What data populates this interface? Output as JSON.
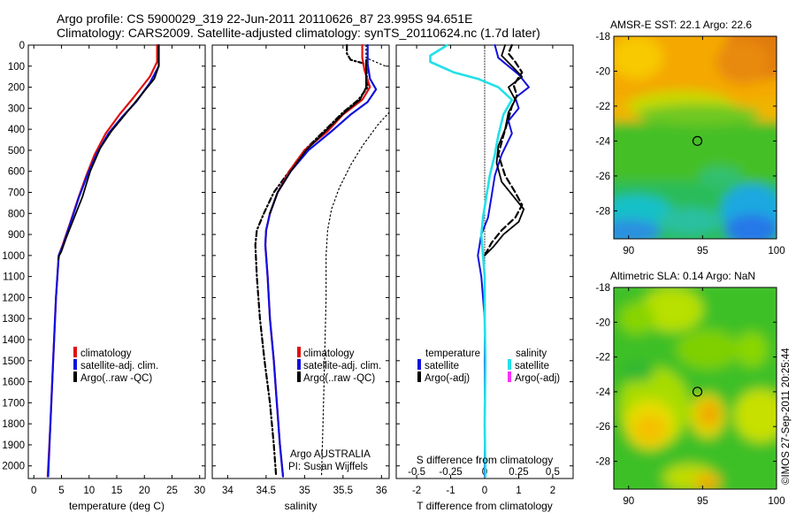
{
  "title_line1": "Argo profile: CS 5900029_319 22-Jun-2011 20110626_87 23.995S 94.651E",
  "title_line2": "Climatology: CARS2009. Satellite-adjusted climatology: synTS_20110624.nc (1.7d later)",
  "side_stamp": "©IMOS 27-Sep-2011 20:25:44",
  "colors": {
    "climatology": "#e01010",
    "satellite": "#1010e0",
    "argo": "#000000",
    "sat_s": "#22e0e8",
    "argo_adj_s": "#ff30ff"
  },
  "chart_data": [
    {
      "type": "line",
      "id": "temperature",
      "xlabel": "temperature (deg C)",
      "xlim": [
        -1,
        31
      ],
      "ylim": [
        2060,
        0
      ],
      "xticks": [
        0,
        5,
        10,
        15,
        20,
        25,
        30
      ],
      "yticks": [
        0,
        100,
        200,
        300,
        400,
        500,
        600,
        700,
        800,
        900,
        1000,
        1100,
        1200,
        1300,
        1400,
        1500,
        1600,
        1700,
        1800,
        1900,
        2000
      ],
      "legend": [
        {
          "label": "climatology",
          "color": "#e01010"
        },
        {
          "label": "satellite-adj. clim.",
          "color": "#1010e0"
        },
        {
          "label": "Argo(..raw -QC)",
          "color": "#000000"
        }
      ],
      "series": [
        {
          "key": "clim",
          "color": "#e01010",
          "width": 2.2,
          "dash": "",
          "points": [
            [
              22.3,
              0
            ],
            [
              22.3,
              80
            ],
            [
              21,
              150
            ],
            [
              18,
              250
            ],
            [
              15.5,
              330
            ],
            [
              13,
              420
            ],
            [
              11,
              520
            ],
            [
              9.5,
              620
            ],
            [
              8,
              730
            ],
            [
              6.5,
              850
            ],
            [
              5.2,
              950
            ],
            [
              4.5,
              1000
            ],
            [
              4,
              1200
            ],
            [
              3.5,
              1500
            ],
            [
              3,
              1800
            ],
            [
              2.5,
              2050
            ]
          ]
        },
        {
          "key": "sat",
          "color": "#1010e0",
          "width": 2.2,
          "dash": "",
          "points": [
            [
              22.6,
              0
            ],
            [
              22.6,
              100
            ],
            [
              21,
              180
            ],
            [
              18.5,
              270
            ],
            [
              16,
              340
            ],
            [
              13.5,
              420
            ],
            [
              11.5,
              510
            ],
            [
              9.8,
              610
            ],
            [
              8.2,
              720
            ],
            [
              6.7,
              840
            ],
            [
              5.3,
              950
            ],
            [
              4.5,
              1000
            ],
            [
              4,
              1200
            ],
            [
              3.5,
              1500
            ],
            [
              3,
              1800
            ],
            [
              2.6,
              2050
            ]
          ]
        },
        {
          "key": "argo",
          "color": "#000000",
          "width": 1.8,
          "dash": "",
          "points": [
            [
              22.6,
              0
            ],
            [
              22.6,
              100
            ],
            [
              21.8,
              160
            ],
            [
              19,
              250
            ],
            [
              16.5,
              330
            ],
            [
              14,
              410
            ],
            [
              12,
              490
            ],
            [
              10.2,
              600
            ],
            [
              8.8,
              720
            ],
            [
              7.3,
              820
            ],
            [
              5.8,
              920
            ],
            [
              5,
              980
            ],
            [
              4.6,
              1000
            ],
            [
              4.4,
              1020
            ]
          ]
        }
      ]
    },
    {
      "type": "line",
      "id": "salinity",
      "xlabel": "salinity",
      "xlim": [
        33.8,
        36.1
      ],
      "ylim": [
        2060,
        0
      ],
      "xticks": [
        34,
        34.5,
        35,
        35.5,
        36
      ],
      "legend": [
        {
          "label": "climatology",
          "color": "#e01010"
        },
        {
          "label": "satellite-adj. clim.",
          "color": "#1010e0"
        },
        {
          "label": "Argo(..raw -QC)",
          "color": "#000000"
        }
      ],
      "notes": [
        "Argo AUSTRALIA",
        "PI: Susan Wijffels"
      ],
      "series": [
        {
          "key": "clim_dot1",
          "color": "#000000",
          "width": 1.2,
          "dash": "1.5,3",
          "points": [
            [
              35.8,
              0
            ],
            [
              35.8,
              60
            ],
            [
              36.05,
              100
            ]
          ]
        },
        {
          "key": "clim_dot2",
          "color": "#000000",
          "width": 1.2,
          "dash": "1.5,3",
          "points": [
            [
              36.1,
              320
            ],
            [
              35.95,
              380
            ],
            [
              35.75,
              480
            ],
            [
              35.6,
              570
            ],
            [
              35.45,
              680
            ],
            [
              35.35,
              780
            ],
            [
              35.3,
              880
            ],
            [
              35.28,
              1000
            ],
            [
              35.28,
              1200
            ],
            [
              35.26,
              1500
            ],
            [
              35.24,
              1800
            ],
            [
              35.22,
              2050
            ]
          ]
        },
        {
          "key": "argo_raw",
          "color": "#000000",
          "width": 2.2,
          "dash": "6,3,1.5,3",
          "points": [
            [
              35.55,
              0
            ],
            [
              35.55,
              40
            ],
            [
              35.6,
              70
            ],
            [
              35.8,
              90
            ],
            [
              35.82,
              200
            ],
            [
              35.7,
              260
            ],
            [
              35.5,
              320
            ],
            [
              35.25,
              410
            ],
            [
              35,
              500
            ],
            [
              34.8,
              600
            ],
            [
              34.6,
              700
            ],
            [
              34.47,
              800
            ],
            [
              34.38,
              880
            ],
            [
              34.36,
              950
            ],
            [
              34.38,
              1100
            ],
            [
              34.42,
              1300
            ],
            [
              34.48,
              1500
            ],
            [
              34.55,
              1700
            ],
            [
              34.6,
              1900
            ],
            [
              34.63,
              2050
            ]
          ]
        },
        {
          "key": "clim",
          "color": "#e01010",
          "width": 2.2,
          "dash": "",
          "points": [
            [
              35.75,
              0
            ],
            [
              35.75,
              60
            ],
            [
              35.78,
              120
            ],
            [
              35.85,
              200
            ],
            [
              35.75,
              260
            ],
            [
              35.5,
              330
            ],
            [
              35.3,
              410
            ],
            [
              35,
              500
            ],
            [
              34.8,
              600
            ],
            [
              34.65,
              700
            ],
            [
              34.55,
              800
            ],
            [
              34.5,
              880
            ],
            [
              34.49,
              950
            ],
            [
              34.52,
              1100
            ],
            [
              34.55,
              1300
            ],
            [
              34.6,
              1500
            ],
            [
              34.64,
              1700
            ],
            [
              34.68,
              1900
            ],
            [
              34.72,
              2050
            ]
          ]
        },
        {
          "key": "sat",
          "color": "#1010e0",
          "width": 2.2,
          "dash": "",
          "points": [
            [
              35.82,
              0
            ],
            [
              35.82,
              90
            ],
            [
              35.85,
              160
            ],
            [
              35.93,
              210
            ],
            [
              35.82,
              270
            ],
            [
              35.6,
              330
            ],
            [
              35.35,
              410
            ],
            [
              35.05,
              500
            ],
            [
              34.82,
              600
            ],
            [
              34.65,
              700
            ],
            [
              34.55,
              800
            ],
            [
              34.5,
              880
            ],
            [
              34.49,
              950
            ],
            [
              34.52,
              1100
            ],
            [
              34.55,
              1300
            ],
            [
              34.6,
              1500
            ],
            [
              34.64,
              1700
            ],
            [
              34.68,
              1900
            ],
            [
              34.72,
              2050
            ]
          ]
        },
        {
          "key": "argo",
          "color": "#000000",
          "width": 1.8,
          "dash": "",
          "points": [
            [
              35.8,
              70
            ],
            [
              35.8,
              200
            ],
            [
              35.72,
              260
            ],
            [
              35.52,
              320
            ],
            [
              35.27,
              410
            ],
            [
              35.02,
              500
            ],
            [
              34.82,
              600
            ],
            [
              34.65,
              700
            ],
            [
              34.55,
              800
            ]
          ]
        }
      ]
    },
    {
      "type": "line",
      "id": "difference",
      "xlabel_bottom": "T difference from climatology",
      "xlabel_top": "S difference from climatology",
      "xlim": [
        -2.6,
        2.6
      ],
      "ylim": [
        2060,
        0
      ],
      "xticks": [
        -2,
        -1,
        0,
        1,
        2
      ],
      "xticks_s": [
        "-0.5",
        "-0.25",
        "0",
        "0.25",
        "0.5"
      ],
      "legend": [
        {
          "group": "temperature",
          "label": "satellite",
          "color": "#1010e0"
        },
        {
          "group": "temperature",
          "label": "Argo(-adj)",
          "color": "#000000"
        },
        {
          "group": "salinity",
          "label": "satellite",
          "color": "#22e0e8"
        },
        {
          "group": "salinity",
          "label": "Argo(-adj)",
          "color": "#ff30ff"
        }
      ],
      "series": [
        {
          "key": "zero",
          "color": "#000000",
          "width": 0.9,
          "dash": "1,2",
          "points": [
            [
              0,
              0
            ],
            [
              0,
              2060
            ]
          ]
        },
        {
          "key": "t_sat",
          "color": "#1010e0",
          "width": 2,
          "dash": "",
          "points": [
            [
              0.3,
              0
            ],
            [
              0.4,
              60
            ],
            [
              1,
              140
            ],
            [
              1.3,
              200
            ],
            [
              0.9,
              250
            ],
            [
              1,
              300
            ],
            [
              0.7,
              360
            ],
            [
              0.8,
              420
            ],
            [
              0.5,
              520
            ],
            [
              0.3,
              620
            ],
            [
              0.2,
              720
            ],
            [
              0.1,
              820
            ],
            [
              -0.1,
              900
            ],
            [
              -0.2,
              1000
            ],
            [
              -0.1,
              1100
            ],
            [
              0,
              1300
            ],
            [
              0,
              2050
            ]
          ]
        },
        {
          "key": "t_argo_dash",
          "color": "#000000",
          "width": 2.2,
          "dash": "7,4",
          "points": [
            [
              0.8,
              0
            ],
            [
              0.7,
              40
            ],
            [
              0.9,
              80
            ],
            [
              1.1,
              130
            ],
            [
              0.85,
              190
            ],
            [
              0.95,
              240
            ],
            [
              0.8,
              290
            ],
            [
              0.7,
              350
            ],
            [
              0.55,
              430
            ],
            [
              0.4,
              520
            ],
            [
              0.6,
              620
            ],
            [
              0.9,
              700
            ],
            [
              1.1,
              760
            ],
            [
              0.9,
              820
            ],
            [
              0.5,
              880
            ],
            [
              0.2,
              940
            ],
            [
              0,
              1000
            ]
          ]
        },
        {
          "key": "t_argo",
          "color": "#000000",
          "width": 1.8,
          "dash": "",
          "points": [
            [
              0.6,
              0
            ],
            [
              0.5,
              50
            ],
            [
              0.8,
              100
            ],
            [
              1.1,
              150
            ],
            [
              0.7,
              200
            ],
            [
              0.9,
              260
            ],
            [
              0.7,
              320
            ],
            [
              0.6,
              400
            ],
            [
              0.4,
              480
            ],
            [
              0.35,
              560
            ],
            [
              0.5,
              650
            ],
            [
              0.85,
              720
            ],
            [
              1.15,
              780
            ],
            [
              1,
              840
            ],
            [
              0.55,
              900
            ],
            [
              0.25,
              960
            ],
            [
              0,
              1000
            ]
          ]
        },
        {
          "key": "s_sat",
          "color": "#22e0e8",
          "width": 2.6,
          "dash": "",
          "points": [
            [
              -1.1,
              0
            ],
            [
              -1.6,
              50
            ],
            [
              -1.6,
              80
            ],
            [
              -0.9,
              130
            ],
            [
              -0.2,
              160
            ],
            [
              0.4,
              200
            ],
            [
              0.8,
              260
            ],
            [
              0.55,
              330
            ],
            [
              0.4,
              430
            ],
            [
              0.3,
              520
            ],
            [
              0.15,
              620
            ],
            [
              0.05,
              720
            ],
            [
              -0.05,
              820
            ],
            [
              -0.1,
              900
            ],
            [
              -0.05,
              1000
            ],
            [
              0,
              1100
            ],
            [
              0,
              1300
            ],
            [
              0.02,
              1500
            ],
            [
              0,
              1800
            ],
            [
              0.02,
              2050
            ]
          ]
        }
      ]
    }
  ],
  "maps": [
    {
      "id": "sst",
      "title": "AMSR-E SST: 22.1 Argo: 22.6",
      "xticks": [
        90,
        95,
        100
      ],
      "yticks": [
        -18,
        -20,
        -22,
        -24,
        -26,
        -28
      ],
      "xlim": [
        89,
        100
      ],
      "ylim": [
        -29.6,
        -18
      ],
      "marker": [
        94.651,
        -23.995
      ]
    },
    {
      "id": "sla",
      "title": "Altimetric SLA: 0.14 Argo: NaN",
      "xticks": [
        90,
        95,
        100
      ],
      "yticks": [
        -18,
        -20,
        -22,
        -24,
        -26,
        -28
      ],
      "xlim": [
        89,
        100
      ],
      "ylim": [
        -29.6,
        -18
      ],
      "marker": [
        94.651,
        -23.995
      ]
    }
  ]
}
